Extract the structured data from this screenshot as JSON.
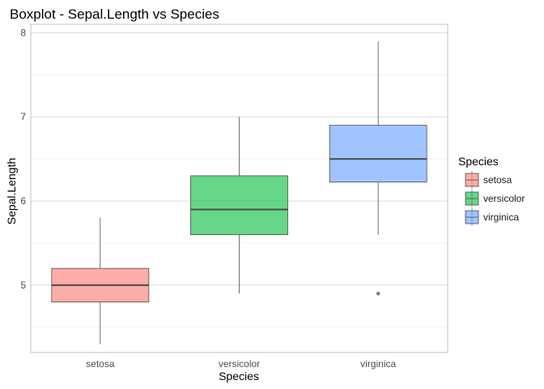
{
  "chart_data": {
    "type": "boxplot",
    "title": "Boxplot - Sepal.Length vs Species",
    "xlabel": "Species",
    "ylabel": "Sepal.Length",
    "categories": [
      "setosa",
      "versicolor",
      "virginica"
    ],
    "ylim": [
      4.2,
      8.1
    ],
    "yticks": [
      5,
      6,
      7,
      8
    ],
    "grid": true,
    "legend": {
      "title": "Species",
      "position": "right"
    },
    "series": [
      {
        "name": "setosa",
        "color": "#f8766d",
        "q1": 4.8,
        "median": 5.0,
        "q3": 5.2,
        "whisker_low": 4.3,
        "whisker_high": 5.8,
        "outliers": []
      },
      {
        "name": "versicolor",
        "color": "#00ba38",
        "q1": 5.6,
        "median": 5.9,
        "q3": 6.3,
        "whisker_low": 4.9,
        "whisker_high": 7.0,
        "outliers": []
      },
      {
        "name": "virginica",
        "color": "#619cff",
        "q1": 6.225,
        "median": 6.5,
        "q3": 6.9,
        "whisker_low": 5.6,
        "whisker_high": 7.9,
        "outliers": [
          4.9
        ]
      }
    ]
  }
}
